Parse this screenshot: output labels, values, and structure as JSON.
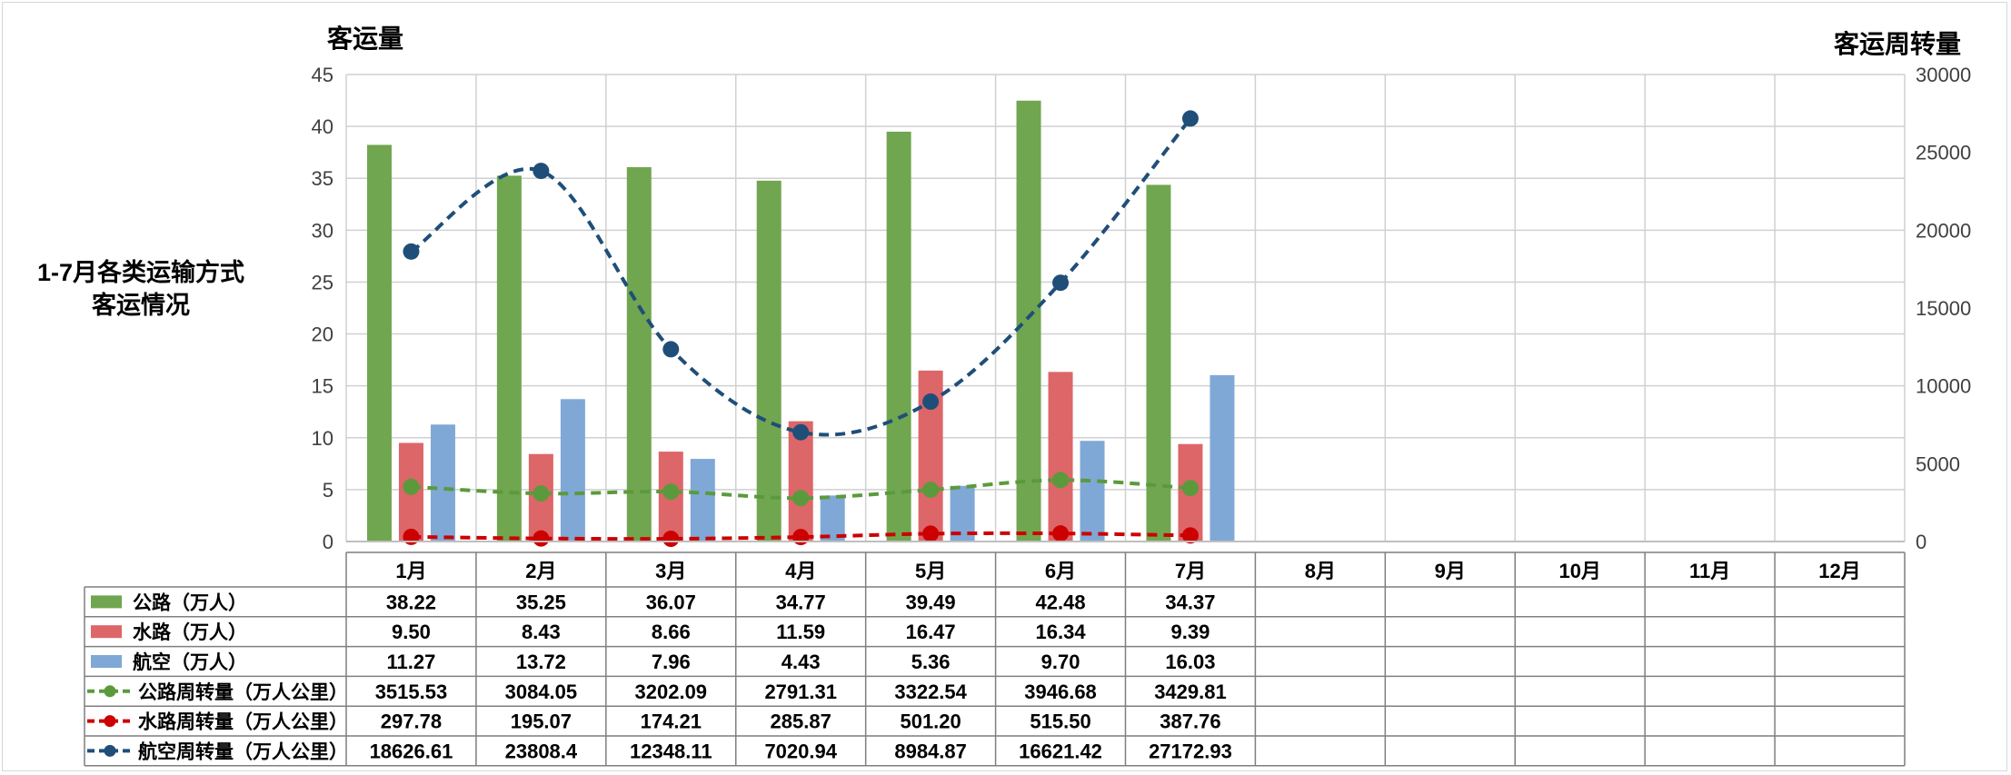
{
  "chart_data": {
    "type": "bar",
    "title": "1-7月各类运输方式客运情况",
    "title_lines": [
      "1-7月各类运输方式",
      "客运情况"
    ],
    "y_left_label": "客运量",
    "y_right_label": "客运周转量",
    "y_left_range": [
      0,
      45
    ],
    "y_left_ticks": [
      0,
      5,
      10,
      15,
      20,
      25,
      30,
      35,
      40,
      45
    ],
    "y_right_range": [
      0,
      30000
    ],
    "y_right_ticks": [
      0,
      5000,
      10000,
      15000,
      20000,
      25000,
      30000
    ],
    "grid": true,
    "legend_placement": "data-table",
    "categories": [
      "1月",
      "2月",
      "3月",
      "4月",
      "5月",
      "6月",
      "7月",
      "8月",
      "9月",
      "10月",
      "11月",
      "12月"
    ],
    "series": [
      {
        "name": "公路（万人）",
        "kind": "bar",
        "axis": "left",
        "color": "#70a64f",
        "values": [
          38.22,
          35.25,
          36.07,
          34.77,
          39.49,
          42.48,
          34.37,
          null,
          null,
          null,
          null,
          null
        ],
        "labels": [
          "38.22",
          "35.25",
          "36.07",
          "34.77",
          "39.49",
          "42.48",
          "34.37",
          "",
          "",
          "",
          "",
          ""
        ]
      },
      {
        "name": "水路（万人）",
        "kind": "bar",
        "axis": "left",
        "color": "#dd6668",
        "values": [
          9.5,
          8.43,
          8.66,
          11.59,
          16.47,
          16.34,
          9.39,
          null,
          null,
          null,
          null,
          null
        ],
        "labels": [
          "9.50",
          "8.43",
          "8.66",
          "11.59",
          "16.47",
          "16.34",
          "9.39",
          "",
          "",
          "",
          "",
          ""
        ]
      },
      {
        "name": "航空（万人）",
        "kind": "bar",
        "axis": "left",
        "color": "#7fa8d6",
        "values": [
          11.27,
          13.72,
          7.96,
          4.43,
          5.36,
          9.7,
          16.03,
          null,
          null,
          null,
          null,
          null
        ],
        "labels": [
          "11.27",
          "13.72",
          "7.96",
          "4.43",
          "5.36",
          "9.70",
          "16.03",
          "",
          "",
          "",
          "",
          ""
        ]
      },
      {
        "name": "公路周转量（万人公里）",
        "kind": "line",
        "axis": "right",
        "color": "#5b9a3c",
        "values": [
          3515.53,
          3084.05,
          3202.09,
          2791.31,
          3322.54,
          3946.68,
          3429.81,
          null,
          null,
          null,
          null,
          null
        ],
        "labels": [
          "3515.53",
          "3084.05",
          "3202.09",
          "2791.31",
          "3322.54",
          "3946.68",
          "3429.81",
          "",
          "",
          "",
          "",
          ""
        ]
      },
      {
        "name": "水路周转量（万人公里）",
        "kind": "line",
        "axis": "right",
        "color": "#cc0000",
        "values": [
          297.78,
          195.07,
          174.21,
          285.87,
          501.2,
          515.5,
          387.76,
          null,
          null,
          null,
          null,
          null
        ],
        "labels": [
          "297.78",
          "195.07",
          "174.21",
          "285.87",
          "501.20",
          "515.50",
          "387.76",
          "",
          "",
          "",
          "",
          ""
        ]
      },
      {
        "name": "航空周转量（万人公里）",
        "kind": "line",
        "axis": "right",
        "color": "#1f4e79",
        "values": [
          18626.61,
          23808.4,
          12348.11,
          7020.94,
          8984.87,
          16621.42,
          27172.93,
          null,
          null,
          null,
          null,
          null
        ],
        "labels": [
          "18626.61",
          "23808.4",
          "12348.11",
          "7020.94",
          "8984.87",
          "16621.42",
          "27172.93",
          "",
          "",
          "",
          "",
          ""
        ]
      }
    ]
  }
}
